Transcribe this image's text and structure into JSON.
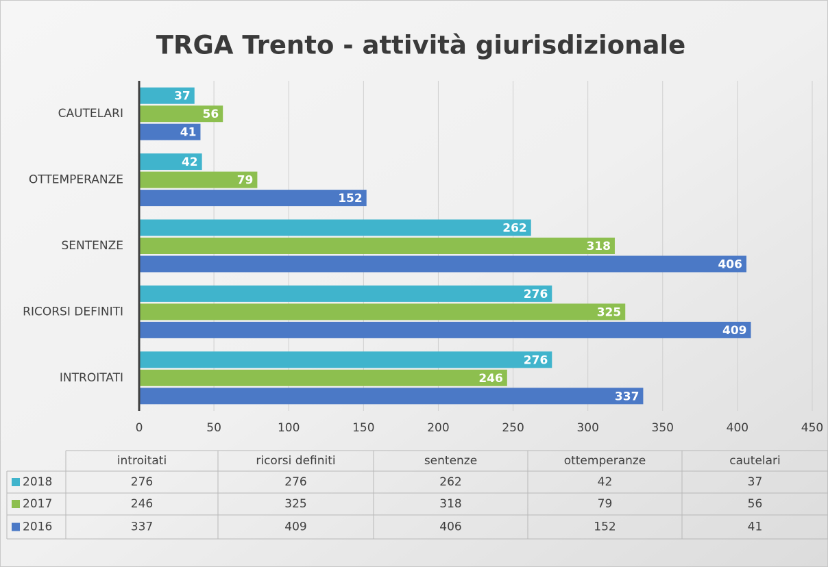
{
  "chart_data": {
    "type": "bar",
    "orientation": "horizontal",
    "title": "TRGA Trento - attività giurisdizionale",
    "categories": [
      "INTROITATI",
      "RICORSI DEFINITI",
      "SENTENZE",
      "OTTEMPERANZE",
      "CAUTELARI"
    ],
    "table_columns": [
      "introitati",
      "ricorsi definiti",
      "sentenze",
      "ottemperanze",
      "cautelari"
    ],
    "series": [
      {
        "name": "2018",
        "color": "#40b4cc",
        "values": [
          276,
          276,
          262,
          42,
          37
        ]
      },
      {
        "name": "2017",
        "color": "#8dbf4f",
        "values": [
          246,
          325,
          318,
          79,
          56
        ]
      },
      {
        "name": "2016",
        "color": "#4b79c6",
        "values": [
          337,
          409,
          406,
          152,
          41
        ]
      }
    ],
    "xlim": [
      0,
      450
    ],
    "xticks": [
      0,
      50,
      100,
      150,
      200,
      250,
      300,
      350,
      400,
      450
    ],
    "grid": true
  }
}
